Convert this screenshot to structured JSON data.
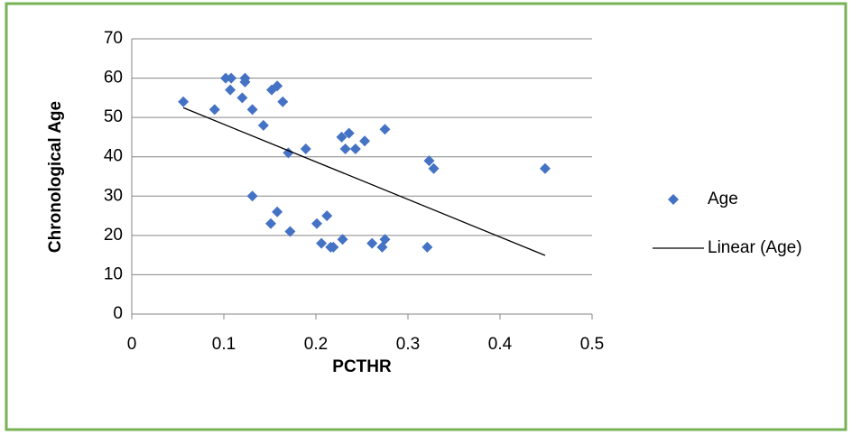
{
  "chart_data": {
    "type": "scatter",
    "x_label": "PCTHR",
    "y_label": "Chronological Age",
    "series": [
      {
        "name": "Age",
        "color": "#4472c4",
        "x": [
          0.056,
          0.09,
          0.102,
          0.108,
          0.107,
          0.12,
          0.123,
          0.123,
          0.131,
          0.143,
          0.152,
          0.158,
          0.164,
          0.17,
          0.189,
          0.131,
          0.151,
          0.158,
          0.172,
          0.201,
          0.212,
          0.206,
          0.216,
          0.219,
          0.229,
          0.228,
          0.232,
          0.236,
          0.243,
          0.253,
          0.275,
          0.261,
          0.272,
          0.275,
          0.321,
          0.323,
          0.328,
          0.449
        ],
        "values": [
          54,
          52,
          60,
          60,
          57,
          55,
          60,
          59,
          52,
          48,
          57,
          58,
          54,
          41,
          42,
          30,
          23,
          26,
          21,
          23,
          25,
          18,
          17,
          17,
          19,
          45,
          42,
          46,
          42,
          44,
          47,
          18,
          17,
          19,
          17,
          39,
          37,
          37
        ]
      }
    ],
    "trendline": {
      "type": "linear",
      "name": "Linear (Age)",
      "color": "#000000"
    },
    "xlim": [
      0,
      0.5
    ],
    "xticks": [
      0,
      0.1,
      0.2,
      0.3,
      0.4,
      0.5
    ],
    "ylim": [
      0,
      70
    ],
    "yticks": [
      0,
      10,
      20,
      30,
      40,
      50,
      60,
      70
    ],
    "grid": true,
    "legend": "right"
  }
}
